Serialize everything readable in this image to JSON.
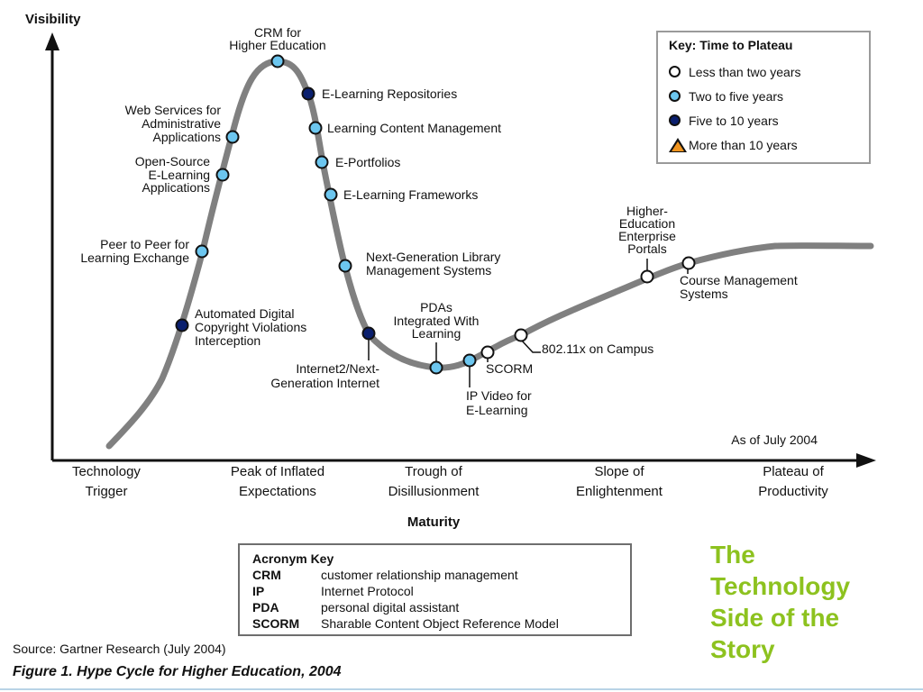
{
  "colors": {
    "less_than_two": "#ffffff",
    "two_to_five": "#6cc6ef",
    "five_to_ten": "#0a1f6e",
    "more_than_ten": "#f0941f",
    "curve": "#808080",
    "title_green": "#8dc21f"
  },
  "axes": {
    "y_title": "Visibility",
    "x_title": "Maturity",
    "as_of": "As of July 2004",
    "phases": [
      {
        "line1": "Technology",
        "line2": "Trigger"
      },
      {
        "line1": "Peak of Inflated",
        "line2": "Expectations"
      },
      {
        "line1": "Trough of",
        "line2": "Disillusionment"
      },
      {
        "line1": "Slope of",
        "line2": "Enlightenment"
      },
      {
        "line1": "Plateau of",
        "line2": "Productivity"
      }
    ]
  },
  "points": [
    {
      "name": "Automated Digital Copyright Violations Interception",
      "lines": [
        "Automated Digital",
        "Copyright Violations",
        "Interception"
      ],
      "category": "five_to_ten"
    },
    {
      "name": "Peer to Peer for Learning Exchange",
      "lines": [
        "Peer to Peer for",
        "Learning Exchange"
      ],
      "category": "two_to_five"
    },
    {
      "name": "Open-Source E-Learning Applications",
      "lines": [
        "Open-Source",
        "E-Learning",
        "Applications"
      ],
      "category": "two_to_five"
    },
    {
      "name": "Web Services for Administrative Applications",
      "lines": [
        "Web Services for",
        "Administrative",
        "Applications"
      ],
      "category": "two_to_five"
    },
    {
      "name": "CRM for Higher Education",
      "lines": [
        "CRM for",
        "Higher Education"
      ],
      "category": "two_to_five"
    },
    {
      "name": "E-Learning Repositories",
      "lines": [
        "E-Learning Repositories"
      ],
      "category": "five_to_ten"
    },
    {
      "name": "Learning Content Management",
      "lines": [
        "Learning Content Management"
      ],
      "category": "two_to_five"
    },
    {
      "name": "E-Portfolios",
      "lines": [
        "E-Portfolios"
      ],
      "category": "two_to_five"
    },
    {
      "name": "E-Learning Frameworks",
      "lines": [
        "E-Learning Frameworks"
      ],
      "category": "two_to_five"
    },
    {
      "name": "Next-Generation Library Management Systems",
      "lines": [
        "Next-Generation Library",
        "Management Systems"
      ],
      "category": "two_to_five"
    },
    {
      "name": "Internet2/Next-Generation Internet",
      "lines": [
        "Internet2/Next-",
        "Generation Internet"
      ],
      "category": "five_to_ten"
    },
    {
      "name": "PDAs Integrated With Learning",
      "lines": [
        "PDAs",
        "Integrated With",
        "Learning"
      ],
      "category": "two_to_five"
    },
    {
      "name": "IP Video for E-Learning",
      "lines": [
        "IP Video for",
        "E-Learning"
      ],
      "category": "two_to_five"
    },
    {
      "name": "SCORM",
      "lines": [
        "SCORM"
      ],
      "category": "less_than_two"
    },
    {
      "name": "802.11x on Campus",
      "lines": [
        "802.11x on Campus"
      ],
      "category": "less_than_two"
    },
    {
      "name": "Higher-Education Enterprise Portals",
      "lines": [
        "Higher-",
        "Education",
        "Enterprise",
        "Portals"
      ],
      "category": "less_than_two"
    },
    {
      "name": "Course Management Systems",
      "lines": [
        "Course Management",
        "Systems"
      ],
      "category": "less_than_two"
    }
  ],
  "key": {
    "title": "Key: Time to Plateau",
    "items": [
      {
        "label": "Less than two years"
      },
      {
        "label": "Two to five years"
      },
      {
        "label": "Five to 10 years"
      },
      {
        "label": "More than 10 years"
      }
    ]
  },
  "acronyms": {
    "title": "Acronym Key",
    "items": [
      {
        "term": "CRM",
        "definition": "customer relationship management"
      },
      {
        "term": "IP",
        "definition": "Internet Protocol"
      },
      {
        "term": "PDA",
        "definition": "personal digital assistant"
      },
      {
        "term": "SCORM",
        "definition": "Sharable Content Object Reference Model"
      }
    ]
  },
  "source": "Source: Gartner Research (July 2004)",
  "caption": "Figure 1. Hype Cycle for Higher Education, 2004",
  "slide_title": {
    "lines": [
      "The",
      "Technology",
      "Side of the",
      "Story"
    ]
  }
}
